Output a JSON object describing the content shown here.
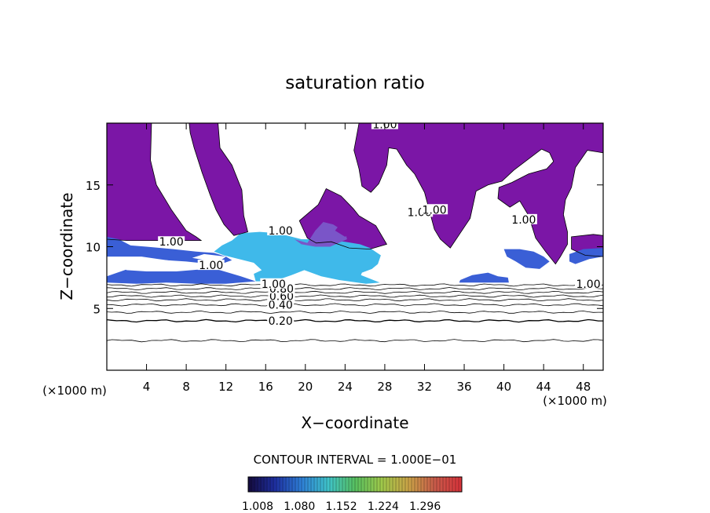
{
  "chart_data": {
    "type": "heatmap",
    "title": "saturation ratio",
    "xlabel": "X−coordinate",
    "ylabel": "Z−coordinate",
    "x_unit": "(×1000 m)",
    "y_unit": "(×1000 m)",
    "xlim": [
      0,
      50
    ],
    "ylim": [
      0,
      20
    ],
    "xticks": [
      4,
      8,
      12,
      16,
      20,
      24,
      28,
      32,
      36,
      40,
      44,
      48
    ],
    "yticks": [
      5,
      10,
      15
    ],
    "contour_interval_label": "CONTOUR INTERVAL = 1.000E−01",
    "contour_lines": [
      {
        "level": 0.1,
        "z": 2.4
      },
      {
        "level": 0.2,
        "z": 4.0
      },
      {
        "level": 0.3,
        "z": 4.7
      },
      {
        "level": 0.4,
        "z": 5.3
      },
      {
        "level": 0.5,
        "z": 5.7
      },
      {
        "level": 0.6,
        "z": 6.0
      },
      {
        "level": 0.7,
        "z": 6.3
      },
      {
        "level": 0.8,
        "z": 6.6
      },
      {
        "level": 0.9,
        "z": 6.9
      }
    ],
    "contour_labels": [
      {
        "text": "0.20",
        "x": 17.5,
        "z": 4.0
      },
      {
        "text": "0.40",
        "x": 17.5,
        "z": 5.3
      },
      {
        "text": "0.60",
        "x": 17.6,
        "z": 6.0
      },
      {
        "text": "0.80",
        "x": 17.6,
        "z": 6.6
      },
      {
        "text": "1.00",
        "x": 16.8,
        "z": 7.0
      },
      {
        "text": "1.00",
        "x": 17.5,
        "z": 11.3
      },
      {
        "text": "1.00",
        "x": 6.5,
        "z": 10.4
      },
      {
        "text": "1.00",
        "x": 10.5,
        "z": 8.5
      },
      {
        "text": "1.00",
        "x": 28.0,
        "z": 19.9
      },
      {
        "text": "1.00",
        "x": 31.5,
        "z": 12.8
      },
      {
        "text": "1.00",
        "x": 33.0,
        "z": 13.0
      },
      {
        "text": "1.00",
        "x": 42.0,
        "z": 12.2
      },
      {
        "text": "1.00",
        "x": 48.5,
        "z": 7.0
      }
    ],
    "colorbar": {
      "ticks": [
        "1.008",
        "1.080",
        "1.152",
        "1.224",
        "1.296"
      ],
      "colors": [
        "#140a3c",
        "#1e2fa0",
        "#2e7fd6",
        "#3fc3c9",
        "#57c060",
        "#9fc84a",
        "#c9a347",
        "#c85a4a",
        "#d8323a"
      ]
    },
    "fill_colors": {
      "purple": "#7b16a6",
      "sky": "#3fb9ea",
      "blue": "#3a5fd6",
      "mid": "#7a55c8"
    }
  }
}
